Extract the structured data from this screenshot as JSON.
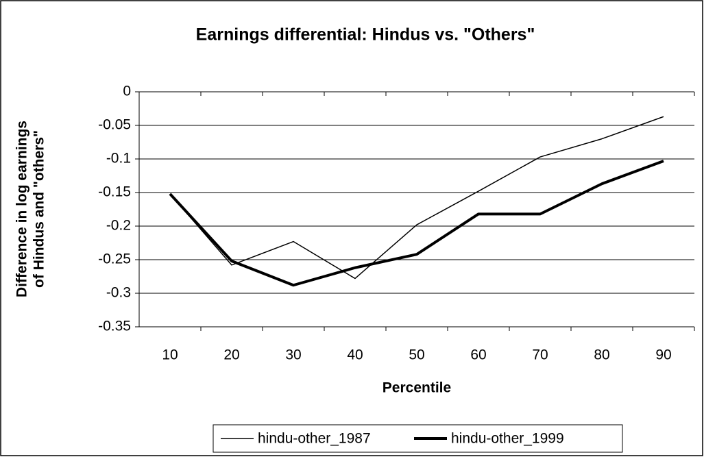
{
  "chart_data": {
    "type": "line",
    "title": "Earnings differential: Hindus vs. \"Others\"",
    "x_label": "Percentile",
    "y_label": [
      "Difference in log earnings",
      "of Hindus and \"others\""
    ],
    "categories": [
      "10",
      "20",
      "30",
      "40",
      "50",
      "60",
      "70",
      "80",
      "90"
    ],
    "series": [
      {
        "name": "hindu-other_1987",
        "color": "#000000",
        "width": 1.5,
        "values": [
          -0.152,
          -0.258,
          -0.223,
          -0.278,
          -0.198,
          -0.148,
          -0.097,
          -0.07,
          -0.037
        ]
      },
      {
        "name": "hindu-other_1999",
        "color": "#000000",
        "width": 4,
        "values": [
          -0.152,
          -0.252,
          -0.288,
          -0.262,
          -0.242,
          -0.182,
          -0.182,
          -0.137,
          -0.103
        ]
      }
    ],
    "ylim": [
      -0.35,
      0
    ],
    "yticks": [
      0,
      -0.05,
      -0.1,
      -0.15,
      -0.2,
      -0.25,
      -0.3,
      -0.35
    ],
    "grid": true,
    "legend": "bottom"
  }
}
